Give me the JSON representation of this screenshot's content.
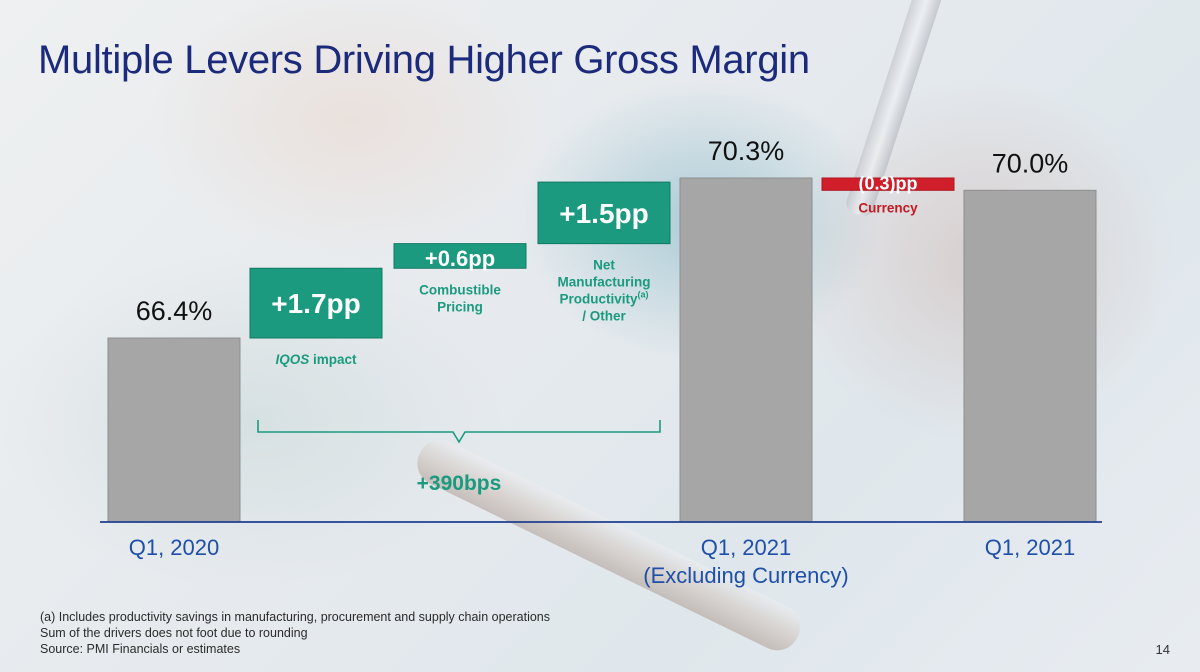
{
  "title": "Multiple Levers Driving Higher Gross Margin",
  "chart_data": {
    "type": "bar",
    "subtype": "waterfall",
    "unit": "%",
    "bars": [
      {
        "kind": "total",
        "value": 66.4,
        "value_label": "66.4%",
        "category_lines": [
          "Q1, 2020"
        ],
        "color": "#a6a6a6"
      },
      {
        "kind": "delta",
        "value": 1.7,
        "value_label": "+1.7pp",
        "caption_lines": [
          "impact"
        ],
        "caption_italic_prefix": "IQOS",
        "color": "#1b9a7f"
      },
      {
        "kind": "delta",
        "value": 0.6,
        "value_label": "+0.6pp",
        "caption_lines": [
          "Combustible",
          "Pricing"
        ],
        "color": "#1b9a7f"
      },
      {
        "kind": "delta",
        "value": 1.5,
        "value_label": "+1.5pp",
        "caption_lines": [
          "Net",
          "Manufacturing",
          "Productivity",
          "/ Other"
        ],
        "caption_superscript": "(a)",
        "color": "#1b9a7f"
      },
      {
        "kind": "total",
        "value": 70.3,
        "value_label": "70.3%",
        "category_lines": [
          "Q1, 2021",
          "(Excluding Currency)"
        ],
        "color": "#a6a6a6"
      },
      {
        "kind": "delta",
        "value": -0.3,
        "value_label": "(0.3)pp",
        "caption_lines": [
          "Currency"
        ],
        "color": "#d01f2a"
      },
      {
        "kind": "total",
        "value": 70.0,
        "value_label": "70.0%",
        "category_lines": [
          "Q1, 2021"
        ],
        "color": "#a6a6a6"
      }
    ],
    "bracket_label": "+390bps",
    "colors": {
      "category_text": "#1f4fa8",
      "bracket": "#1b9a7f",
      "axis": "#1f3f8f"
    }
  },
  "footnotes": {
    "note_a": "(a) Includes productivity savings in manufacturing, procurement and supply chain operations",
    "note_rounding": "Sum of the drivers does not foot due to rounding",
    "source": "Source: PMI Financials or estimates"
  },
  "page_number": "14"
}
